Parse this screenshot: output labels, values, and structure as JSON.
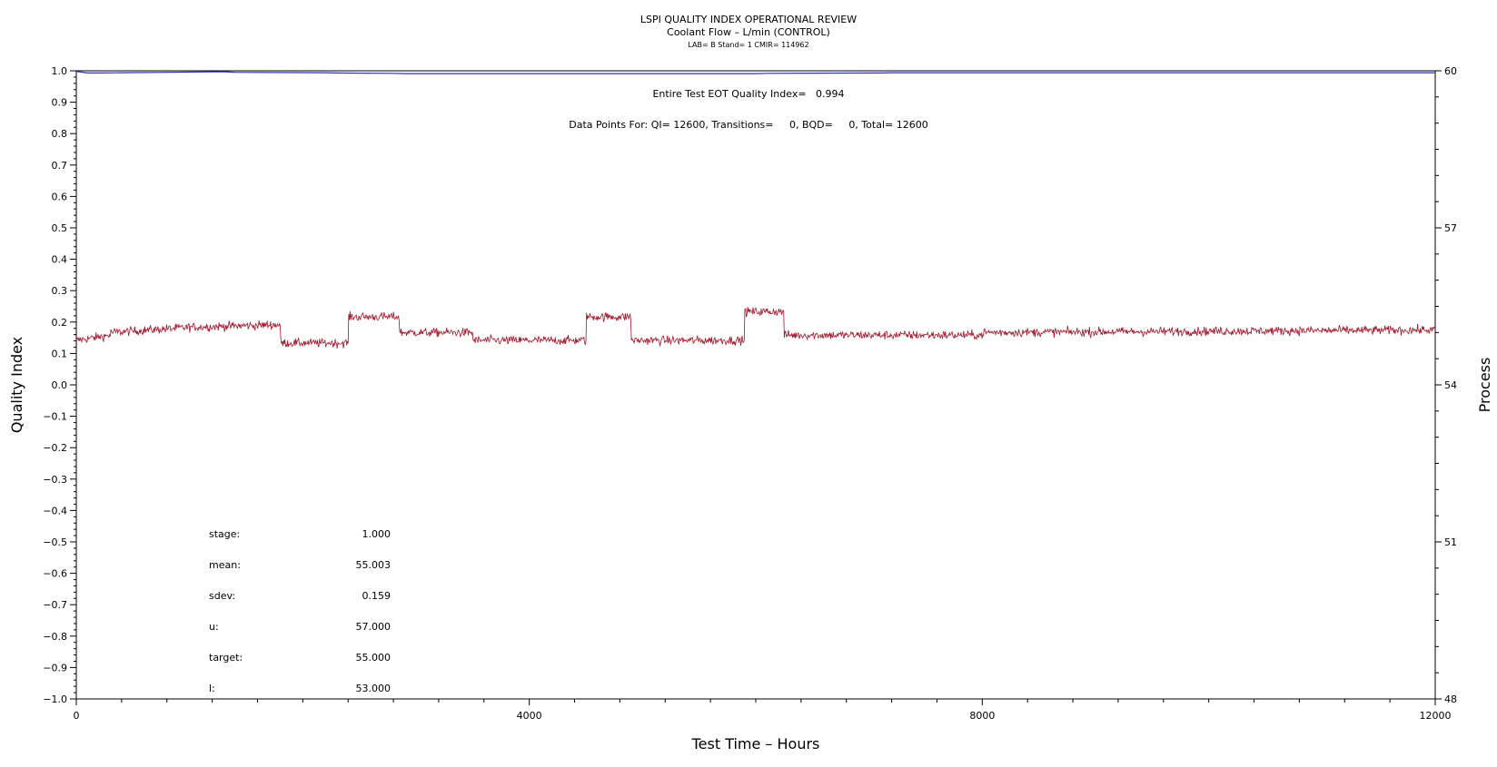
{
  "chart_data": {
    "type": "line",
    "title": "LSPI QUALITY INDEX OPERATIONAL REVIEW",
    "subtitle": "Coolant Flow – L/min (CONTROL)",
    "subtitle2": "LAB= B Stand= 1 CMIR= 114962",
    "xlabel": "Test Time – Hours",
    "ylabel": "Quality Index",
    "y2label": "Process",
    "xlim": [
      0,
      12000
    ],
    "ylim": [
      -1.0,
      1.0
    ],
    "y2lim": [
      48,
      60
    ],
    "x_ticks": [
      0,
      4000,
      8000,
      12000
    ],
    "x_tick_labels": [
      "0",
      "4000",
      "8000",
      "12000"
    ],
    "y_ticks": [
      1.0,
      0.9,
      0.8,
      0.7,
      0.6,
      0.5,
      0.4,
      0.3,
      0.2,
      0.1,
      0.0,
      -0.1,
      -0.2,
      -0.3,
      -0.4,
      -0.5,
      -0.6,
      -0.7,
      -0.8,
      -0.9,
      -1.0
    ],
    "y_tick_labels": [
      "1.0",
      "0.9",
      "0.8",
      "0.7",
      "0.6",
      "0.5",
      "0.4",
      "0.3",
      "0.2",
      "0.1",
      "0.0",
      "−0.1",
      "−0.2",
      "−0.3",
      "−0.4",
      "−0.5",
      "−0.6",
      "−0.7",
      "−0.8",
      "−0.9",
      "−1.0"
    ],
    "y2_ticks": [
      60,
      57,
      54,
      51,
      48
    ],
    "y2_tick_labels": [
      "60",
      "57",
      "54",
      "51",
      "48"
    ],
    "grid": false,
    "annotations": {
      "eot_text": "Entire Test EOT Quality Index=   0.994",
      "data_points_text": "Data Points For: QI= 12600, Transitions=     0, BQD=     0, Total= 12600"
    },
    "stats": [
      {
        "label": "stage:",
        "value": "1.000"
      },
      {
        "label": "mean:",
        "value": "55.003"
      },
      {
        "label": "sdev:",
        "value": "0.159"
      },
      {
        "label": "u:",
        "value": "57.000"
      },
      {
        "label": "target:",
        "value": "55.000"
      },
      {
        "label": "l:",
        "value": "53.000"
      }
    ],
    "series": [
      {
        "axis": "left",
        "color": "#2b2fb8",
        "x": [
          0,
          100,
          200,
          400,
          800,
          1300,
          1400,
          2200,
          2300,
          2800,
          2900,
          6000,
          6100,
          7100,
          7200,
          9000,
          12000
        ],
        "y": [
          0.998,
          0.993,
          0.993,
          0.994,
          0.995,
          0.997,
          0.995,
          0.994,
          0.993,
          0.992,
          0.991,
          0.991,
          0.992,
          0.993,
          0.994,
          0.994,
          0.994
        ]
      },
      {
        "axis": "right",
        "color": "#a0152a",
        "segments": [
          {
            "x0": 0,
            "x1": 300,
            "y0": 54.85,
            "y1": 54.95
          },
          {
            "x0": 300,
            "x1": 1000,
            "y0": 55.0,
            "y1": 55.1
          },
          {
            "x0": 1000,
            "x1": 1800,
            "y0": 55.1,
            "y1": 55.15
          },
          {
            "x0": 1800,
            "x1": 2400,
            "y0": 54.8,
            "y1": 54.8
          },
          {
            "x0": 2400,
            "x1": 2850,
            "y0": 55.3,
            "y1": 55.3
          },
          {
            "x0": 2850,
            "x1": 3500,
            "y0": 55.0,
            "y1": 55.0
          },
          {
            "x0": 3500,
            "x1": 4500,
            "y0": 54.85,
            "y1": 54.85
          },
          {
            "x0": 4500,
            "x1": 4900,
            "y0": 55.3,
            "y1": 55.3
          },
          {
            "x0": 4900,
            "x1": 5900,
            "y0": 54.85,
            "y1": 54.85
          },
          {
            "x0": 5900,
            "x1": 6250,
            "y0": 55.4,
            "y1": 55.4
          },
          {
            "x0": 6250,
            "x1": 8000,
            "y0": 54.95,
            "y1": 54.95
          },
          {
            "x0": 8000,
            "x1": 12000,
            "y0": 55.0,
            "y1": 55.05
          }
        ],
        "noise_sdev": 0.1
      }
    ]
  }
}
